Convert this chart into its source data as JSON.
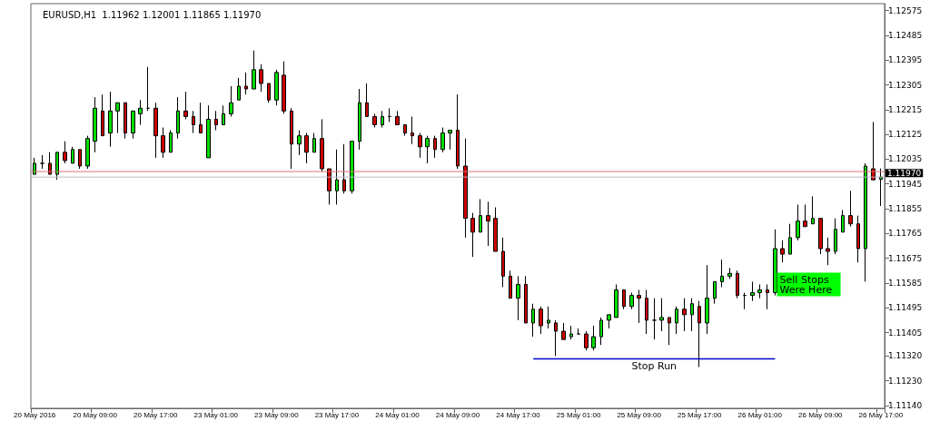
{
  "chart_data": {
    "type": "candlestick",
    "title": "EURUSD,H1  1.11962 1.12001 1.11865 1.11970",
    "categories": [
      "20 May 2016",
      null,
      null,
      null,
      null,
      null,
      null,
      null,
      "20 May 09:00",
      null,
      null,
      null,
      null,
      null,
      null,
      null,
      "20 May 17:00",
      null,
      null,
      null,
      null,
      null,
      null,
      null,
      "23 May 01:00",
      null,
      null,
      null,
      null,
      null,
      null,
      null,
      "23 May 09:00",
      null,
      null,
      null,
      null,
      null,
      null,
      null,
      "23 May 17:00",
      null,
      null,
      null,
      null,
      null,
      null,
      null,
      "24 May 01:00",
      null,
      null,
      null,
      null,
      null,
      null,
      null,
      "24 May 09:00",
      null,
      null,
      null,
      null,
      null,
      null,
      null,
      "24 May 17:00",
      null,
      null,
      null,
      null,
      null,
      null,
      null,
      "25 May 01:00",
      null,
      null,
      null,
      null,
      null,
      null,
      null,
      "25 May 09:00",
      null,
      null,
      null,
      null,
      null,
      null,
      null,
      "25 May 17:00",
      null,
      null,
      null,
      null,
      null,
      null,
      null,
      "26 May 01:00",
      null,
      null,
      null,
      null,
      null,
      null,
      null,
      "26 May 09:00",
      null,
      null,
      null,
      null,
      null,
      null,
      null,
      "26 May 17:00"
    ],
    "series": [
      {
        "ohlc": [
          [
            1.1198,
            1.1204,
            1.1198,
            1.1202
          ],
          [
            1.1202,
            1.1205,
            1.12,
            1.1202
          ],
          [
            1.1202,
            1.1206,
            1.1198,
            1.1198
          ],
          [
            1.1198,
            1.1206,
            1.1196,
            1.1206
          ],
          [
            1.1206,
            1.121,
            1.1202,
            1.1203
          ],
          [
            1.1202,
            1.1208,
            1.1202,
            1.1207
          ],
          [
            1.1207,
            1.1207,
            1.12,
            1.1201
          ],
          [
            1.1201,
            1.1212,
            1.12,
            1.1211
          ],
          [
            1.121,
            1.1226,
            1.1206,
            1.1222
          ],
          [
            1.1221,
            1.1227,
            1.1212,
            1.1212
          ],
          [
            1.1213,
            1.1228,
            1.1208,
            1.1221
          ],
          [
            1.1221,
            1.1224,
            1.1213,
            1.1224
          ],
          [
            1.1224,
            1.1224,
            1.1211,
            1.1213
          ],
          [
            1.1213,
            1.1221,
            1.1211,
            1.1221
          ],
          [
            1.122,
            1.1225,
            1.1216,
            1.1222
          ],
          [
            1.1222,
            1.1237,
            1.1221,
            1.1222
          ],
          [
            1.1222,
            1.1224,
            1.1204,
            1.1212
          ],
          [
            1.1212,
            1.1215,
            1.1204,
            1.1206
          ],
          [
            1.1206,
            1.1214,
            1.1206,
            1.1213
          ],
          [
            1.1213,
            1.1226,
            1.1211,
            1.1221
          ],
          [
            1.1221,
            1.1228,
            1.1218,
            1.1219
          ],
          [
            1.1219,
            1.1221,
            1.1213,
            1.1216
          ],
          [
            1.1216,
            1.1224,
            1.1213,
            1.1213
          ],
          [
            1.1204,
            1.1223,
            1.1204,
            1.1218
          ],
          [
            1.1218,
            1.1221,
            1.1214,
            1.1216
          ],
          [
            1.1216,
            1.1223,
            1.1216,
            1.122
          ],
          [
            1.122,
            1.123,
            1.1219,
            1.1224
          ],
          [
            1.1225,
            1.1233,
            1.1225,
            1.123
          ],
          [
            1.123,
            1.1235,
            1.1227,
            1.1229
          ],
          [
            1.1229,
            1.1243,
            1.1229,
            1.1236
          ],
          [
            1.1236,
            1.1238,
            1.1228,
            1.1231
          ],
          [
            1.1231,
            1.1231,
            1.1224,
            1.1225
          ],
          [
            1.1225,
            1.1236,
            1.1223,
            1.1235
          ],
          [
            1.1234,
            1.1239,
            1.122,
            1.1221
          ],
          [
            1.1221,
            1.1222,
            1.12,
            1.1209
          ],
          [
            1.1209,
            1.1214,
            1.1205,
            1.1212
          ],
          [
            1.1212,
            1.1213,
            1.1202,
            1.1206
          ],
          [
            1.1206,
            1.1213,
            1.1206,
            1.1211
          ],
          [
            1.1211,
            1.1218,
            1.1199,
            1.12
          ],
          [
            1.12,
            1.12,
            1.1187,
            1.1192
          ],
          [
            1.1192,
            1.1207,
            1.1187,
            1.1196
          ],
          [
            1.1196,
            1.1209,
            1.1191,
            1.1192
          ],
          [
            1.1192,
            1.121,
            1.1191,
            1.121
          ],
          [
            1.121,
            1.1229,
            1.1207,
            1.1224
          ],
          [
            1.1224,
            1.1231,
            1.1219,
            1.1219
          ],
          [
            1.1219,
            1.122,
            1.1215,
            1.1216
          ],
          [
            1.1216,
            1.1221,
            1.1215,
            1.1219
          ],
          [
            1.1219,
            1.1222,
            1.1217,
            1.1219
          ],
          [
            1.1219,
            1.1221,
            1.1216,
            1.1216
          ],
          [
            1.1216,
            1.1216,
            1.1212,
            1.1213
          ],
          [
            1.1213,
            1.1219,
            1.1209,
            1.1212
          ],
          [
            1.1212,
            1.1213,
            1.1204,
            1.1208
          ],
          [
            1.1208,
            1.1212,
            1.1202,
            1.1211
          ],
          [
            1.1211,
            1.1212,
            1.1204,
            1.1207
          ],
          [
            1.1207,
            1.1215,
            1.1206,
            1.1213
          ],
          [
            1.1213,
            1.1214,
            1.1207,
            1.1214
          ],
          [
            1.1214,
            1.1227,
            1.12,
            1.1201
          ],
          [
            1.1201,
            1.1211,
            1.1175,
            1.1182
          ],
          [
            1.1182,
            1.1184,
            1.1168,
            1.1177
          ],
          [
            1.1177,
            1.1189,
            1.1177,
            1.1183
          ],
          [
            1.1183,
            1.1188,
            1.1172,
            1.1181
          ],
          [
            1.1182,
            1.1186,
            1.117,
            1.117
          ],
          [
            1.117,
            1.1175,
            1.1157,
            1.1161
          ],
          [
            1.1161,
            1.1163,
            1.1153,
            1.1153
          ],
          [
            1.1153,
            1.1161,
            1.1145,
            1.1158
          ],
          [
            1.1158,
            1.1161,
            1.1144,
            1.1144
          ],
          [
            1.1144,
            1.1151,
            1.1139,
            1.1149
          ],
          [
            1.1149,
            1.115,
            1.114,
            1.1143
          ],
          [
            1.1144,
            1.115,
            1.1142,
            1.1145
          ],
          [
            1.1144,
            1.1145,
            1.1132,
            1.1141
          ],
          [
            1.1141,
            1.1144,
            1.1138,
            1.1138
          ],
          [
            1.1139,
            1.1143,
            1.1138,
            1.114
          ],
          [
            1.114,
            1.1142,
            1.114,
            1.114
          ],
          [
            1.114,
            1.1141,
            1.1134,
            1.1135
          ],
          [
            1.1135,
            1.1143,
            1.1134,
            1.1139
          ],
          [
            1.1139,
            1.1146,
            1.1136,
            1.1145
          ],
          [
            1.1145,
            1.1147,
            1.1142,
            1.1147
          ],
          [
            1.1146,
            1.1158,
            1.1146,
            1.1156
          ],
          [
            1.1156,
            1.1156,
            1.1149,
            1.115
          ],
          [
            1.115,
            1.1155,
            1.1149,
            1.1154
          ],
          [
            1.1154,
            1.1156,
            1.1144,
            1.1153
          ],
          [
            1.1153,
            1.1156,
            1.114,
            1.1145
          ],
          [
            1.1145,
            1.1153,
            1.1138,
            1.1145
          ],
          [
            1.1145,
            1.1153,
            1.1141,
            1.1146
          ],
          [
            1.1146,
            1.1146,
            1.1136,
            1.1144
          ],
          [
            1.1144,
            1.115,
            1.114,
            1.1149
          ],
          [
            1.1149,
            1.1153,
            1.1141,
            1.1147
          ],
          [
            1.1147,
            1.1153,
            1.1141,
            1.1151
          ],
          [
            1.115,
            1.1152,
            1.1128,
            1.1144
          ],
          [
            1.1144,
            1.1165,
            1.114,
            1.1153
          ],
          [
            1.1153,
            1.1159,
            1.1151,
            1.1159
          ],
          [
            1.1159,
            1.1167,
            1.1157,
            1.1161
          ],
          [
            1.1161,
            1.1164,
            1.116,
            1.1162
          ],
          [
            1.1162,
            1.1163,
            1.1153,
            1.1154
          ],
          [
            1.1154,
            1.1155,
            1.1149,
            1.1154
          ],
          [
            1.1154,
            1.1159,
            1.1152,
            1.1155
          ],
          [
            1.1155,
            1.1158,
            1.1153,
            1.1156
          ],
          [
            1.1156,
            1.1158,
            1.1149,
            1.1155
          ],
          [
            1.1155,
            1.1178,
            1.1154,
            1.1171
          ],
          [
            1.1171,
            1.1174,
            1.1166,
            1.1169
          ],
          [
            1.1169,
            1.118,
            1.1169,
            1.1175
          ],
          [
            1.1175,
            1.1187,
            1.1174,
            1.1181
          ],
          [
            1.1181,
            1.1187,
            1.1179,
            1.1179
          ],
          [
            1.118,
            1.119,
            1.118,
            1.1182
          ],
          [
            1.1182,
            1.1182,
            1.1169,
            1.1171
          ],
          [
            1.1171,
            1.1175,
            1.1165,
            1.117
          ],
          [
            1.117,
            1.1182,
            1.1169,
            1.1178
          ],
          [
            1.1177,
            1.1185,
            1.1177,
            1.1183
          ],
          [
            1.1183,
            1.1192,
            1.1179,
            1.118
          ],
          [
            1.118,
            1.1183,
            1.1166,
            1.1171
          ],
          [
            1.1171,
            1.1202,
            1.1159,
            1.1201
          ],
          [
            1.12,
            1.1217,
            1.1196,
            1.1196
          ],
          [
            1.11962,
            1.12001,
            1.11865,
            1.1197
          ]
        ],
        "colors": [
          "#00dd00",
          "#000000",
          "#cc0000",
          "#00dd00",
          "#cc0000",
          "#00dd00",
          "#cc0000",
          "#00dd00",
          "#00dd00",
          "#cc0000",
          "#00dd00",
          "#00dd00",
          "#cc0000",
          "#00dd00",
          "#00dd00",
          "#000000",
          "#cc0000",
          "#cc0000",
          "#00dd00",
          "#00dd00",
          "#cc0000",
          "#cc0000",
          "#cc0000",
          "#00dd00",
          "#cc0000",
          "#00dd00",
          "#00dd00",
          "#00dd00",
          "#cc0000",
          "#00dd00",
          "#cc0000",
          "#cc0000",
          "#00dd00",
          "#cc0000",
          "#cc0000",
          "#00dd00",
          "#cc0000",
          "#00dd00",
          "#cc0000",
          "#cc0000",
          "#00dd00",
          "#cc0000",
          "#00dd00",
          "#00dd00",
          "#cc0000",
          "#cc0000",
          "#00dd00",
          "#000000",
          "#cc0000",
          "#cc0000",
          "#cc0000",
          "#cc0000",
          "#00dd00",
          "#cc0000",
          "#00dd00",
          "#00dd00",
          "#cc0000",
          "#cc0000",
          "#cc0000",
          "#00dd00",
          "#cc0000",
          "#cc0000",
          "#cc0000",
          "#cc0000",
          "#00dd00",
          "#cc0000",
          "#00dd00",
          "#cc0000",
          "#00dd00",
          "#cc0000",
          "#cc0000",
          "#00dd00",
          "#000000",
          "#cc0000",
          "#00dd00",
          "#00dd00",
          "#00dd00",
          "#00dd00",
          "#cc0000",
          "#00dd00",
          "#cc0000",
          "#cc0000",
          "#000000",
          "#00dd00",
          "#cc0000",
          "#00dd00",
          "#cc0000",
          "#00dd00",
          "#cc0000",
          "#00dd00",
          "#00dd00",
          "#00dd00",
          "#00dd00",
          "#cc0000",
          "#000000",
          "#00dd00",
          "#00dd00",
          "#cc0000",
          "#00dd00",
          "#cc0000",
          "#00dd00",
          "#00dd00",
          "#cc0000",
          "#00dd00",
          "#cc0000",
          "#cc0000",
          "#00dd00",
          "#00dd00",
          "#cc0000",
          "#cc0000",
          "#00dd00",
          "#cc0000",
          "#00dd00"
        ]
      },
      {
        "type": "line",
        "name": "Stop Run",
        "values": [
          null,
          null,
          null,
          null,
          null,
          null,
          null,
          null,
          null,
          null,
          null,
          null,
          null,
          null,
          null,
          null,
          null,
          null,
          null,
          null,
          null,
          null,
          null,
          null,
          null,
          null,
          null,
          null,
          null,
          null,
          null,
          null,
          null,
          null,
          null,
          null,
          null,
          null,
          null,
          null,
          null,
          null,
          null,
          null,
          null,
          null,
          null,
          null,
          null,
          null,
          null,
          null,
          null,
          null,
          null,
          null,
          null,
          null,
          null,
          null,
          null,
          null,
          null,
          null,
          null,
          null,
          1.1131,
          1.1131,
          1.1131,
          1.1131,
          1.1131,
          1.1131,
          1.1131,
          1.1131,
          1.1131,
          1.1131,
          1.1131,
          1.1131,
          1.1131,
          1.1131,
          1.1131,
          1.1131,
          1.1131,
          1.1131,
          1.1131,
          1.1131,
          1.1131,
          1.1131,
          1.1131,
          1.1131,
          1.1131,
          1.1131,
          1.1131,
          1.1131,
          1.1131,
          1.1131,
          1.1131,
          1.1131,
          1.1131,
          null,
          null,
          null,
          null,
          null,
          null,
          null,
          null,
          null,
          null,
          null,
          null,
          null,
          null
        ],
        "color": "#0000cc"
      }
    ],
    "ylim": [
      1.1113,
      1.126
    ],
    "yticks": [
      {
        "value": 1.1114,
        "label": "1.11140"
      },
      {
        "value": 1.1123,
        "label": "1.11230"
      },
      {
        "value": 1.1132,
        "label": "1.11320"
      },
      1.11405,
      1.11495,
      1.11585,
      1.11675,
      1.11765,
      1.11855,
      1.11945,
      1.12035,
      1.12125,
      1.12215,
      1.12305,
      1.12395,
      1.12485,
      1.12575
    ],
    "ref_lines": [
      {
        "axis": "y",
        "value": 1.1199,
        "label": null,
        "color": "#e07070"
      },
      {
        "axis": "y",
        "value": 1.1197,
        "label": "1.11970",
        "color": "#b8b8c8"
      }
    ],
    "annotations": [
      "Sell Stops Were Here"
    ],
    "grid": false,
    "legend": false
  }
}
